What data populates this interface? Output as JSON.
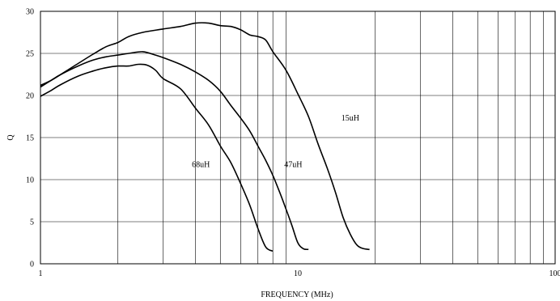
{
  "chart_data": {
    "type": "line",
    "title": "",
    "xlabel": "FREQUENCY (MHz)",
    "ylabel": "Q",
    "x_scale": "log",
    "xlim": [
      1,
      100
    ],
    "ylim": [
      0,
      30
    ],
    "x_ticks": [
      1,
      10,
      100
    ],
    "x_tick_labels": [
      "1",
      "10",
      "100"
    ],
    "y_ticks": [
      0,
      5,
      10,
      15,
      20,
      25,
      30
    ],
    "y_tick_labels": [
      "0",
      "5",
      "10",
      "15",
      "20",
      "25",
      "30"
    ],
    "grid": true,
    "legend": "none",
    "line_color": "#000000",
    "series": [
      {
        "name": "15uH",
        "x": [
          1,
          1.1,
          1.2,
          1.4,
          1.6,
          1.8,
          2,
          2.2,
          2.5,
          3,
          3.5,
          4,
          4.5,
          5,
          5.5,
          6,
          6.5,
          7,
          7.5,
          8,
          9,
          10,
          11,
          12,
          13,
          14,
          15,
          16,
          17,
          18,
          19
        ],
        "y": [
          21.2,
          21.8,
          22.5,
          23.8,
          24.9,
          25.8,
          26.3,
          27.0,
          27.5,
          27.9,
          28.2,
          28.6,
          28.6,
          28.3,
          28.2,
          27.8,
          27.2,
          27.0,
          26.6,
          25.2,
          23.0,
          20.2,
          17.5,
          14.2,
          11.4,
          8.5,
          5.5,
          3.5,
          2.2,
          1.8,
          1.7
        ]
      },
      {
        "name": "47uH",
        "x": [
          1,
          1.1,
          1.2,
          1.4,
          1.6,
          1.8,
          2,
          2.2,
          2.5,
          2.8,
          3,
          3.5,
          4,
          4.5,
          5,
          5.5,
          6,
          6.5,
          7,
          7.5,
          8,
          8.5,
          9,
          9.5,
          10,
          10.5,
          11
        ],
        "y": [
          21.0,
          21.8,
          22.5,
          23.5,
          24.2,
          24.6,
          24.8,
          25.0,
          25.2,
          24.8,
          24.5,
          23.7,
          22.8,
          21.8,
          20.5,
          18.8,
          17.3,
          15.8,
          14.0,
          12.3,
          10.5,
          8.5,
          6.5,
          4.5,
          2.5,
          1.8,
          1.7
        ]
      },
      {
        "name": "68uH",
        "x": [
          1,
          1.1,
          1.2,
          1.4,
          1.6,
          1.8,
          2,
          2.2,
          2.4,
          2.6,
          2.8,
          3,
          3.5,
          4,
          4.5,
          5,
          5.5,
          6,
          6.5,
          7,
          7.5,
          8
        ],
        "y": [
          19.9,
          20.6,
          21.3,
          22.3,
          22.9,
          23.3,
          23.5,
          23.5,
          23.7,
          23.6,
          23.0,
          22.0,
          20.8,
          18.5,
          16.5,
          14.0,
          12.0,
          9.5,
          7.0,
          4.2,
          2.0,
          1.5
        ]
      }
    ],
    "annotations": [
      {
        "text": "15uH",
        "x": 16,
        "y": 17
      },
      {
        "text": "47uH",
        "x": 9.6,
        "y": 11.5
      },
      {
        "text": "68uH",
        "x": 4.2,
        "y": 11.5
      }
    ]
  }
}
